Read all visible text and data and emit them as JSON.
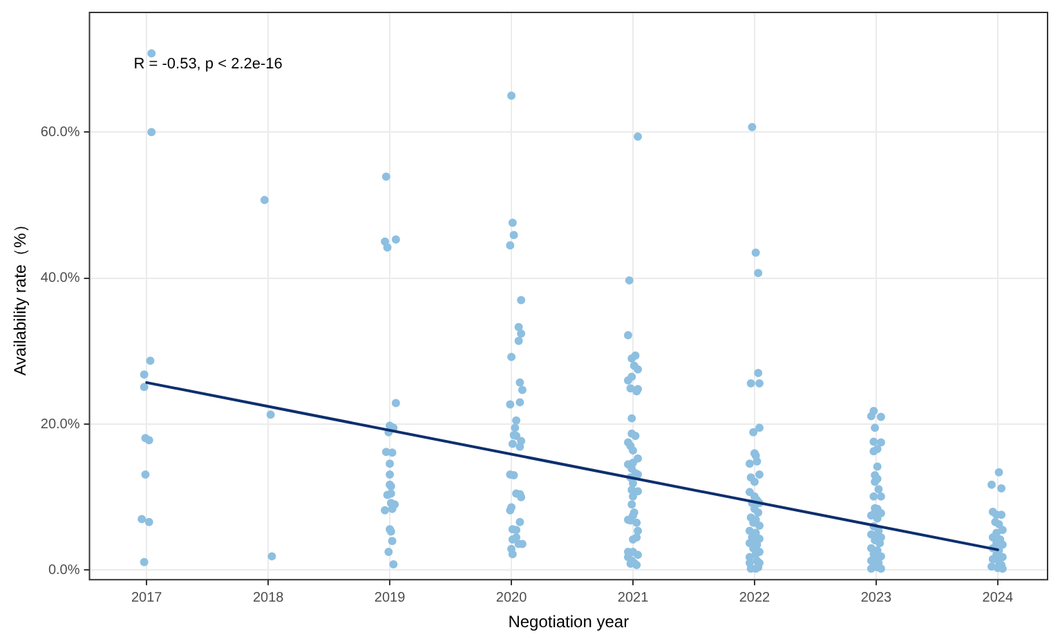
{
  "chart_data": {
    "type": "scatter",
    "xlabel": "Negotiation year",
    "ylabel": "Availability rate（%）",
    "annotations": [
      "R = -0.53, p < 2.2e-16"
    ],
    "xlim": [
      2016.53,
      2024.41
    ],
    "xticks": [
      2017,
      2018,
      2019,
      2020,
      2021,
      2022,
      2023,
      2024
    ],
    "ylim": [
      -1.3,
      76.4
    ],
    "yticks": [
      {
        "value": 0,
        "label": "0.0%"
      },
      {
        "value": 20,
        "label": "20.0%"
      },
      {
        "value": 40,
        "label": "40.0%"
      },
      {
        "value": 60,
        "label": "60.0%"
      }
    ],
    "grid": true,
    "legend": false,
    "marker": "circle",
    "series": [
      {
        "color": "#8dbfe0",
        "x": [
          2017.04,
          2017.04,
          2017.03,
          2016.98,
          2016.98,
          2016.99,
          2017.02,
          2016.99,
          2016.96,
          2017.02,
          2016.98,
          2017.97,
          2018.02,
          2018.03,
          2018.97,
          2018.96,
          2018.98,
          2019.05,
          2019.05,
          2019.0,
          2019.03,
          2018.99,
          2018.97,
          2019.02,
          2019.0,
          2019.0,
          2019.0,
          2019.01,
          2018.98,
          2019.01,
          2019.01,
          2019.04,
          2019.02,
          2018.96,
          2019.0,
          2019.01,
          2019.02,
          2018.99,
          2019.03,
          2020.0,
          2020.01,
          2020.02,
          2019.99,
          2020.08,
          2020.06,
          2020.08,
          2020.06,
          2020.0,
          2020.07,
          2020.09,
          2020.07,
          2019.99,
          2020.04,
          2020.03,
          2020.02,
          2020.04,
          2020.08,
          2020.01,
          2020.07,
          2019.99,
          2020.02,
          2020.04,
          2020.07,
          2020.08,
          2020.0,
          2019.99,
          2020.07,
          2020.01,
          2020.04,
          2020.04,
          2020.01,
          2020.06,
          2020.09,
          2020.0,
          2020.01,
          2021.04,
          2020.97,
          2020.96,
          2020.99,
          2021.02,
          2021.01,
          2021.04,
          2020.99,
          2020.96,
          2020.98,
          2021.03,
          2021.04,
          2020.99,
          2020.99,
          2021.02,
          2020.96,
          2020.98,
          2021.0,
          2021.04,
          2020.96,
          2021.0,
          2020.99,
          2021.02,
          2021.04,
          2020.98,
          2021.0,
          2020.99,
          2021.04,
          2021.0,
          2020.99,
          2021.01,
          2020.96,
          2020.98,
          2021.0,
          2021.03,
          2021.04,
          2021.0,
          2021.03,
          2020.96,
          2021.0,
          2021.04,
          2020.96,
          2020.99,
          2021.01,
          2021.03,
          2020.98,
          2021.98,
          2022.01,
          2022.03,
          2022.03,
          2021.97,
          2022.04,
          2022.04,
          2021.99,
          2022.0,
          2022.01,
          2022.02,
          2021.96,
          2022.04,
          2021.97,
          2022.0,
          2021.96,
          2022.0,
          2022.02,
          2021.98,
          2022.04,
          2022.0,
          2022.03,
          2021.97,
          2022.01,
          2021.99,
          2022.04,
          2021.96,
          2022.01,
          2021.98,
          2022.04,
          2022.0,
          2021.96,
          2022.02,
          2021.99,
          2022.04,
          2022.01,
          2021.96,
          2022.02,
          2021.96,
          2022.03,
          2022.04,
          2021.97,
          2022.01,
          2022.98,
          2022.96,
          2023.04,
          2022.99,
          2022.98,
          2023.04,
          2023.01,
          2022.98,
          2023.01,
          2022.99,
          2023.01,
          2022.99,
          2023.02,
          2022.98,
          2023.04,
          2022.99,
          2023.01,
          2022.99,
          2023.04,
          2022.96,
          2023.01,
          2022.98,
          2023.02,
          2022.96,
          2023.0,
          2023.04,
          2022.99,
          2023.03,
          2022.96,
          2023.01,
          2022.98,
          2023.04,
          2023.0,
          2022.96,
          2023.02,
          2022.98,
          2023.01,
          2023.04,
          2022.96,
          2024.01,
          2023.95,
          2024.03,
          2023.96,
          2023.99,
          2024.03,
          2023.98,
          2024.01,
          2024.04,
          2023.99,
          2023.96,
          2024.02,
          2023.99,
          2024.04,
          2023.96,
          2024.01,
          2023.99,
          2024.04,
          2023.96,
          2024.01,
          2024.03,
          2023.95,
          2024.0,
          2024.04
        ],
        "values": [
          70.8,
          60.0,
          28.7,
          26.8,
          25.1,
          18.1,
          17.8,
          13.1,
          7.0,
          6.6,
          1.1,
          50.7,
          21.3,
          1.9,
          53.9,
          45.0,
          44.2,
          45.3,
          22.9,
          19.8,
          19.5,
          18.9,
          16.2,
          16.1,
          14.6,
          13.1,
          11.7,
          11.5,
          10.3,
          10.5,
          9.2,
          9.0,
          8.4,
          8.2,
          5.6,
          5.3,
          4.0,
          2.5,
          0.8,
          65.0,
          47.6,
          45.9,
          44.5,
          37.0,
          33.3,
          32.4,
          31.4,
          29.2,
          25.7,
          24.7,
          23.0,
          22.7,
          20.5,
          19.5,
          18.5,
          18.4,
          17.7,
          17.3,
          16.9,
          13.1,
          13.0,
          10.5,
          10.4,
          10.0,
          8.6,
          8.2,
          6.6,
          5.6,
          5.5,
          4.5,
          4.2,
          3.6,
          3.6,
          2.9,
          2.2,
          59.4,
          39.7,
          32.2,
          29.0,
          29.4,
          28.0,
          27.5,
          26.5,
          26.0,
          24.9,
          24.5,
          24.8,
          20.8,
          18.7,
          18.4,
          17.5,
          17.0,
          16.4,
          15.3,
          14.5,
          14.7,
          13.9,
          13.3,
          13.1,
          12.7,
          11.9,
          11.0,
          10.8,
          10.1,
          9.0,
          7.9,
          6.9,
          6.8,
          7.5,
          6.5,
          5.4,
          4.2,
          4.5,
          2.5,
          2.5,
          2.1,
          1.8,
          1.3,
          1.0,
          0.7,
          0.9,
          60.7,
          43.5,
          40.7,
          27.0,
          25.6,
          25.6,
          19.5,
          18.9,
          16.0,
          15.7,
          14.9,
          14.6,
          13.1,
          12.7,
          12.1,
          10.7,
          10.1,
          9.6,
          9.2,
          9.2,
          8.4,
          7.9,
          7.2,
          6.9,
          6.5,
          6.1,
          5.4,
          5.1,
          4.5,
          4.3,
          3.9,
          3.7,
          3.5,
          3.0,
          2.5,
          2.2,
          1.8,
          1.3,
          1.0,
          0.4,
          1.0,
          0.2,
          0.2,
          21.8,
          21.1,
          21.0,
          19.5,
          17.6,
          17.5,
          16.6,
          16.3,
          14.2,
          13.0,
          12.5,
          12.1,
          11.1,
          10.1,
          10.1,
          8.5,
          8.4,
          7.9,
          7.8,
          7.5,
          7.1,
          6.0,
          5.4,
          4.9,
          4.8,
          4.5,
          4.1,
          3.7,
          3.0,
          2.7,
          2.2,
          1.9,
          1.6,
          1.3,
          1.0,
          0.7,
          0.4,
          0.2,
          0.2,
          13.4,
          11.7,
          11.2,
          8.0,
          7.6,
          7.6,
          6.6,
          6.3,
          5.5,
          5.1,
          4.5,
          4.2,
          3.7,
          3.5,
          3.0,
          2.7,
          2.1,
          1.8,
          1.5,
          1.1,
          0.7,
          0.5,
          0.3,
          0.2
        ]
      },
      {
        "type": "line",
        "marker": "none",
        "color": "#0d2f6e",
        "x": [
          2017,
          2024
        ],
        "values": [
          25.7,
          2.8
        ]
      }
    ]
  }
}
